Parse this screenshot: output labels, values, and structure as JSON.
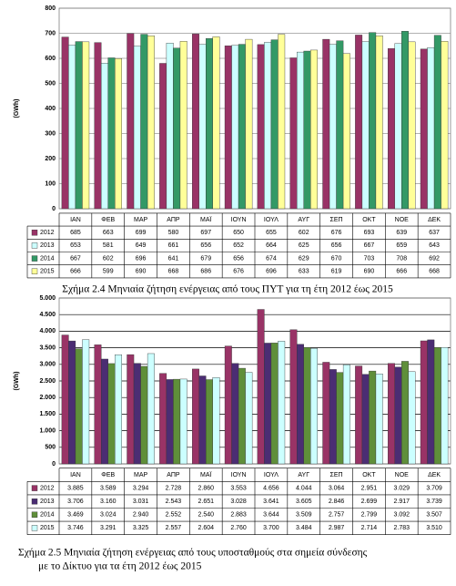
{
  "chart_data": [
    {
      "type": "bar",
      "y_label": "(GWh)",
      "categories": [
        "ΙΑΝ",
        "ΦΕΒ",
        "ΜΑΡ",
        "ΑΠΡ",
        "ΜΑΪ",
        "ΙΟΥΝ",
        "ΙΟΥΛ",
        "ΑΥΓ",
        "ΣΕΠ",
        "ΟΚΤ",
        "ΝΟΕ",
        "ΔΕΚ"
      ],
      "series": [
        {
          "name": "2012",
          "color": "#993366",
          "values": [
            685,
            663,
            699,
            580,
            697,
            650,
            655,
            602,
            676,
            693,
            639,
            637
          ]
        },
        {
          "name": "2013",
          "color": "#ccffff",
          "values": [
            653,
            581,
            649,
            661,
            656,
            652,
            664,
            625,
            656,
            667,
            659,
            643
          ]
        },
        {
          "name": "2014",
          "color": "#339966",
          "values": [
            667,
            602,
            696,
            641,
            679,
            656,
            674,
            629,
            670,
            703,
            708,
            692
          ]
        },
        {
          "name": "2015",
          "color": "#ffff99",
          "values": [
            666,
            599,
            690,
            668,
            686,
            676,
            696,
            633,
            619,
            690,
            666,
            668
          ]
        }
      ],
      "ylim": [
        0,
        800
      ],
      "yticks": [
        0,
        100,
        200,
        300,
        400,
        500,
        600,
        700,
        800
      ],
      "grid": true,
      "grid_color": "#999999",
      "caption": [
        "Σχήμα 2.4  Μηνιαία ζήτηση ενέργειας από τους ΠΥΤ για τη έτη 2012 έως 2015"
      ]
    },
    {
      "type": "bar",
      "y_label": "(GWh)",
      "categories": [
        "ΙΑΝ",
        "ΦΕΒ",
        "ΜΑΡ",
        "ΑΠΡ",
        "ΜΑΪ",
        "ΙΟΥΝ",
        "ΙΟΥΛ",
        "ΑΥΓ",
        "ΣΕΠ",
        "ΟΚΤ",
        "ΝΟΕ",
        "ΔΕΚ"
      ],
      "series": [
        {
          "name": "2012",
          "color": "#993366",
          "values": [
            3885,
            3589,
            3294,
            2728,
            2860,
            3553,
            4656,
            4044,
            3064,
            2951,
            3029,
            3709
          ],
          "value_labels": [
            "3.885",
            "3.589",
            "3.294",
            "2.728",
            "2.860",
            "3.553",
            "4.656",
            "4.044",
            "3.064",
            "2.951",
            "3.029",
            "3.709"
          ]
        },
        {
          "name": "2013",
          "color": "#4b2d73",
          "values": [
            3706,
            3160,
            3031,
            2543,
            2651,
            3028,
            3641,
            3605,
            2846,
            2699,
            2917,
            3739
          ],
          "value_labels": [
            "3.706",
            "3.160",
            "3.031",
            "2.543",
            "2.651",
            "3.028",
            "3.641",
            "3.605",
            "2.846",
            "2.699",
            "2.917",
            "3.739"
          ]
        },
        {
          "name": "2014",
          "color": "#5f8f3a",
          "values": [
            3469,
            3024,
            2940,
            2552,
            2540,
            2883,
            3644,
            3509,
            2757,
            2799,
            3092,
            3507
          ],
          "value_labels": [
            "3.469",
            "3.024",
            "2.940",
            "2.552",
            "2.540",
            "2.883",
            "3.644",
            "3.509",
            "2.757",
            "2.799",
            "3.092",
            "3.507"
          ]
        },
        {
          "name": "2015",
          "color": "#ccffff",
          "values": [
            3746,
            3291,
            3325,
            2557,
            2604,
            2760,
            3700,
            3484,
            2987,
            2714,
            2783,
            3510
          ],
          "value_labels": [
            "3.746",
            "3.291",
            "3.325",
            "2.557",
            "2.604",
            "2.760",
            "3.700",
            "3.484",
            "2.987",
            "2.714",
            "2.783",
            "3.510"
          ]
        }
      ],
      "ylim": [
        0,
        5000
      ],
      "yticks": [
        0,
        500,
        {
          "value": 1000,
          "label": "1.000"
        },
        {
          "value": 1500,
          "label": "1.500"
        },
        {
          "value": 2000,
          "label": "2.000"
        },
        {
          "value": 2500,
          "label": "2.500"
        },
        {
          "value": 3000,
          "label": "3.000"
        },
        {
          "value": 3500,
          "label": "3.500"
        },
        {
          "value": 4000,
          "label": "4.000"
        },
        {
          "value": 4500,
          "label": "4.500"
        },
        {
          "value": 5000,
          "label": "5.000"
        }
      ],
      "grid": true,
      "grid_color": "#000000",
      "caption": [
        "Σχήμα 2.5  Μηνιαία ζήτηση ενέργειας από τους υποσταθμούς στα σημεία σύνδεσης",
        "με το Δίκτυο για τα έτη 2012 έως 2015"
      ]
    }
  ]
}
